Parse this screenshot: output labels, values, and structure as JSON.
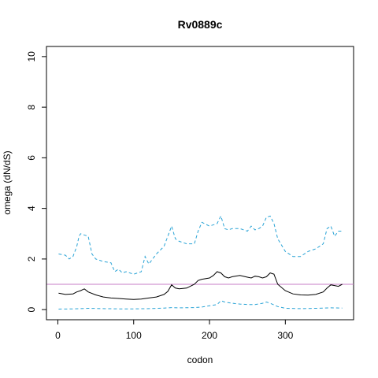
{
  "chart_data": {
    "type": "line",
    "title": "Rv0889c",
    "xlabel": "codon",
    "ylabel": "omega (dN/dS)",
    "xlim": [
      -15,
      390
    ],
    "ylim": [
      -0.4,
      10.4
    ],
    "xticks": [
      0,
      100,
      200,
      300
    ],
    "yticks": [
      0,
      2,
      4,
      6,
      8,
      10
    ],
    "grid": false,
    "reference_line": {
      "y": 1,
      "color": "#c77cc7"
    },
    "colors": {
      "mean": "#000000",
      "bounds": "#29a3d6"
    },
    "series": [
      {
        "key": "mean",
        "style": "solid",
        "x": [
          1,
          10,
          20,
          25,
          30,
          35,
          40,
          50,
          60,
          70,
          80,
          90,
          100,
          110,
          120,
          130,
          140,
          145,
          150,
          155,
          160,
          170,
          180,
          185,
          190,
          200,
          205,
          210,
          215,
          220,
          225,
          230,
          240,
          250,
          255,
          260,
          265,
          270,
          275,
          280,
          285,
          290,
          300,
          310,
          320,
          330,
          340,
          350,
          355,
          360,
          365,
          370,
          375
        ],
        "y": [
          0.65,
          0.6,
          0.62,
          0.7,
          0.75,
          0.82,
          0.7,
          0.58,
          0.5,
          0.46,
          0.44,
          0.42,
          0.4,
          0.42,
          0.46,
          0.5,
          0.6,
          0.72,
          0.98,
          0.85,
          0.82,
          0.85,
          1.0,
          1.15,
          1.2,
          1.25,
          1.35,
          1.5,
          1.45,
          1.3,
          1.25,
          1.3,
          1.35,
          1.28,
          1.25,
          1.32,
          1.3,
          1.25,
          1.3,
          1.45,
          1.4,
          1.0,
          0.75,
          0.62,
          0.58,
          0.57,
          0.6,
          0.7,
          0.85,
          0.98,
          0.95,
          0.92,
          1.0
        ]
      },
      {
        "key": "upper",
        "style": "dashed",
        "x": [
          1,
          10,
          15,
          20,
          25,
          28,
          30,
          40,
          45,
          50,
          60,
          70,
          75,
          80,
          85,
          90,
          100,
          110,
          115,
          120,
          125,
          130,
          140,
          145,
          150,
          155,
          160,
          170,
          180,
          185,
          190,
          200,
          210,
          215,
          220,
          225,
          230,
          240,
          250,
          255,
          260,
          265,
          270,
          275,
          280,
          285,
          290,
          300,
          310,
          320,
          330,
          340,
          350,
          355,
          360,
          365,
          370,
          375
        ],
        "y": [
          2.2,
          2.15,
          2.0,
          2.1,
          2.5,
          2.9,
          3.0,
          2.9,
          2.2,
          2.0,
          1.9,
          1.85,
          1.5,
          1.6,
          1.45,
          1.5,
          1.4,
          1.5,
          2.1,
          1.8,
          2.0,
          2.2,
          2.5,
          2.9,
          3.3,
          2.8,
          2.7,
          2.6,
          2.6,
          3.1,
          3.45,
          3.3,
          3.4,
          3.7,
          3.2,
          3.15,
          3.2,
          3.2,
          3.1,
          3.3,
          3.15,
          3.2,
          3.3,
          3.65,
          3.7,
          3.4,
          2.8,
          2.3,
          2.1,
          2.1,
          2.3,
          2.4,
          2.6,
          3.2,
          3.3,
          2.9,
          3.1,
          3.1
        ]
      },
      {
        "key": "lower",
        "style": "dashed",
        "x": [
          1,
          20,
          40,
          60,
          80,
          100,
          120,
          140,
          150,
          160,
          180,
          190,
          200,
          210,
          215,
          220,
          230,
          240,
          250,
          260,
          270,
          275,
          280,
          290,
          300,
          320,
          340,
          360,
          375
        ],
        "y": [
          0.02,
          0.03,
          0.05,
          0.04,
          0.03,
          0.03,
          0.04,
          0.06,
          0.08,
          0.07,
          0.08,
          0.1,
          0.15,
          0.2,
          0.35,
          0.3,
          0.25,
          0.22,
          0.2,
          0.2,
          0.25,
          0.3,
          0.25,
          0.12,
          0.05,
          0.04,
          0.05,
          0.07,
          0.06
        ]
      }
    ]
  }
}
